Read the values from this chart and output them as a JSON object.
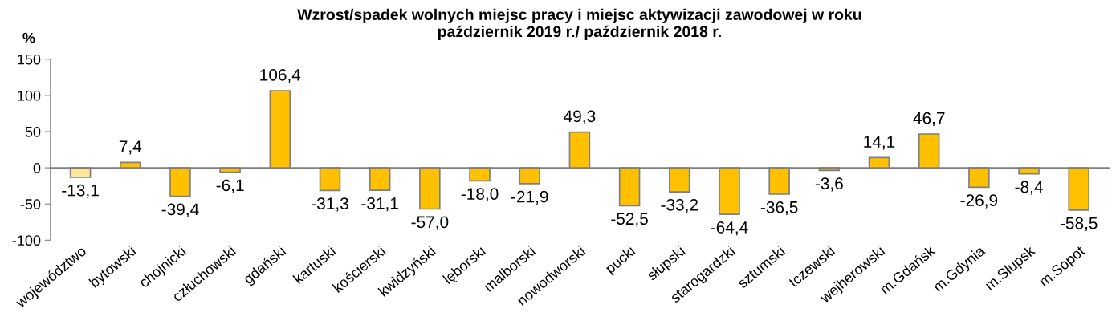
{
  "chart_data": {
    "type": "bar",
    "title": "Wzrost/spadek wolnych miejsc pracy i miejsc aktywizacji zawodowej w roku\npaździernik 2019 r./ październik 2018 r.",
    "ylabel": "%",
    "categories": [
      "województwo",
      "bytowski",
      "chojnicki",
      "człuchowski",
      "gdański",
      "kartuski",
      "kościerski",
      "kwidzyński",
      "lęborski",
      "malborski",
      "nowodworski",
      "pucki",
      "słupski",
      "starogardzki",
      "sztumski",
      "tczewski",
      "wejherowski",
      "m.Gdańsk",
      "m.Gdynia",
      "m.Słupsk",
      "m.Sopot"
    ],
    "values": [
      -13.1,
      7.4,
      -39.4,
      -6.1,
      106.4,
      -31.3,
      -31.1,
      -57.0,
      -18.0,
      -21.9,
      49.3,
      -52.5,
      -33.2,
      -64.4,
      -36.5,
      -3.6,
      14.1,
      46.7,
      -26.9,
      -8.4,
      -58.5
    ],
    "value_labels": [
      "-13,1",
      "7,4",
      "-39,4",
      "-6,1",
      "106,4",
      "-31,3",
      "-31,1",
      "-57,0",
      "-18,0",
      "-21,9",
      "49,3",
      "-52,5",
      "-33,2",
      "-64,4",
      "-36,5",
      "-3,6",
      "14,1",
      "46,7",
      "-26,9",
      "-8,4",
      "-58,5"
    ],
    "colors": [
      "#ffe699",
      "#ffc000",
      "#ffc000",
      "#ffc000",
      "#ffc000",
      "#ffc000",
      "#ffc000",
      "#ffc000",
      "#ffc000",
      "#ffc000",
      "#ffc000",
      "#ffc000",
      "#ffc000",
      "#ffc000",
      "#ffc000",
      "#ffc000",
      "#ffc000",
      "#ffc000",
      "#ffc000",
      "#ffc000",
      "#ffc000"
    ],
    "ylim": [
      -100,
      150
    ],
    "yticks": [
      -100,
      -50,
      0,
      50,
      100,
      150
    ],
    "legend": false
  }
}
